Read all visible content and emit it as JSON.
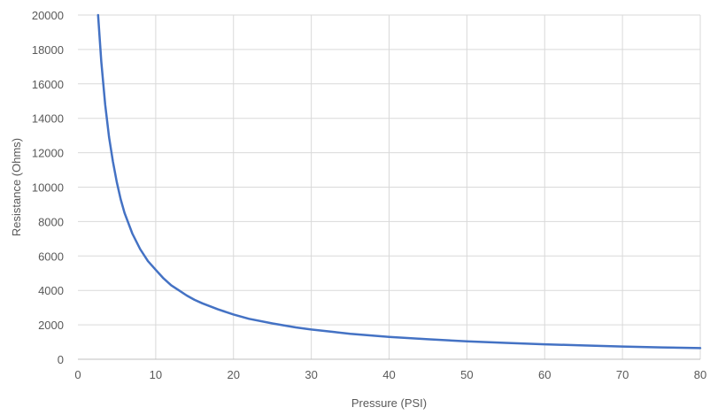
{
  "chart_data": {
    "type": "line",
    "title": "",
    "xlabel": "Pressure (PSI)",
    "ylabel": "Resistance (Ohms)",
    "xlim": [
      0,
      80
    ],
    "ylim": [
      0,
      20000
    ],
    "x_ticks": [
      0,
      10,
      20,
      30,
      40,
      50,
      60,
      70,
      80
    ],
    "y_ticks": [
      0,
      2000,
      4000,
      6000,
      8000,
      10000,
      12000,
      14000,
      16000,
      18000,
      20000
    ],
    "grid": true,
    "legend": "none",
    "series": [
      {
        "color": "#4472c4",
        "x": [
          2.6,
          3,
          3.5,
          4,
          4.5,
          5,
          5.5,
          6,
          7,
          8,
          9,
          10,
          11,
          12,
          13,
          14,
          15,
          16,
          18,
          20,
          22,
          25,
          28,
          30,
          33,
          35,
          40,
          45,
          50,
          55,
          60,
          65,
          70,
          75,
          80
        ],
        "y": [
          20000,
          17300,
          14800,
          12900,
          11500,
          10300,
          9300,
          8500,
          7300,
          6400,
          5700,
          5200,
          4700,
          4300,
          4000,
          3700,
          3450,
          3250,
          2900,
          2600,
          2350,
          2080,
          1850,
          1730,
          1580,
          1480,
          1300,
          1160,
          1040,
          950,
          870,
          800,
          740,
          690,
          650
        ]
      }
    ]
  }
}
